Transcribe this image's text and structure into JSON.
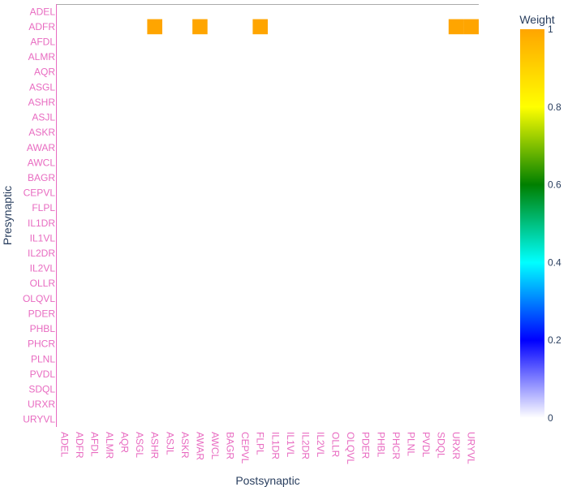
{
  "chart_data": {
    "type": "heatmap",
    "xlabel": "Postsynaptic",
    "ylabel": "Presynaptic",
    "x_categories": [
      "ADEL",
      "ADFR",
      "AFDL",
      "ALMR",
      "AQR",
      "ASGL",
      "ASHR",
      "ASJL",
      "ASKR",
      "AWAR",
      "AWCL",
      "BAGR",
      "CEPVL",
      "FLPL",
      "IL1DR",
      "IL1VL",
      "IL2DR",
      "IL2VL",
      "OLLR",
      "OLQVL",
      "PDER",
      "PHBL",
      "PHCR",
      "PLNL",
      "PVDL",
      "SDQL",
      "URXR",
      "URYVL"
    ],
    "y_categories": [
      "ADEL",
      "ADFR",
      "AFDL",
      "ALMR",
      "AQR",
      "ASGL",
      "ASHR",
      "ASJL",
      "ASKR",
      "AWAR",
      "AWCL",
      "BAGR",
      "CEPVL",
      "FLPL",
      "IL1DR",
      "IL1VL",
      "IL2DR",
      "IL2VL",
      "OLLR",
      "OLQVL",
      "PDER",
      "PHBL",
      "PHCR",
      "PLNL",
      "PVDL",
      "SDQL",
      "URXR",
      "URYVL"
    ],
    "cells": [
      {
        "pre": "ADFR",
        "post": "ASHR",
        "weight": 1
      },
      {
        "pre": "ADFR",
        "post": "AWAR",
        "weight": 1
      },
      {
        "pre": "ADFR",
        "post": "FLPL",
        "weight": 1
      },
      {
        "pre": "ADFR",
        "post": "URXR",
        "weight": 1
      },
      {
        "pre": "ADFR",
        "post": "URYVL",
        "weight": 1
      }
    ],
    "zlim": [
      0,
      1
    ],
    "colorscale": [
      [
        0,
        "#ffffff"
      ],
      [
        0.2,
        "#0000ff"
      ],
      [
        0.4,
        "#00ffff"
      ],
      [
        0.6,
        "#008000"
      ],
      [
        0.8,
        "#ffff00"
      ],
      [
        1,
        "#ffa500"
      ]
    ],
    "colorbar": {
      "title": "Weight",
      "ticks": [
        "0",
        "0.2",
        "0.4",
        "0.6",
        "0.8",
        "1"
      ]
    },
    "grid": false
  }
}
